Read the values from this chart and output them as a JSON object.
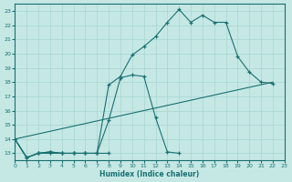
{
  "xlabel": "Humidex (Indice chaleur)",
  "xlim": [
    0,
    23
  ],
  "ylim": [
    12.5,
    23.5
  ],
  "xticks": [
    0,
    1,
    2,
    3,
    4,
    5,
    6,
    7,
    8,
    9,
    10,
    11,
    12,
    13,
    14,
    15,
    16,
    17,
    18,
    19,
    20,
    21,
    22,
    23
  ],
  "yticks": [
    13,
    14,
    15,
    16,
    17,
    18,
    19,
    20,
    21,
    22,
    23
  ],
  "background_color": "#c5e8e5",
  "grid_color": "#a8d5d0",
  "line_color": "#1a7070",
  "line1_x": [
    0,
    1,
    2,
    3,
    4,
    5,
    6,
    7,
    8
  ],
  "line1_y": [
    14.0,
    12.7,
    13.0,
    13.0,
    13.0,
    13.0,
    13.0,
    13.0,
    13.0
  ],
  "line2_x": [
    0,
    1,
    2,
    3,
    4,
    5,
    6,
    7,
    8,
    9,
    10,
    11,
    12,
    13,
    14
  ],
  "line2_y": [
    14.0,
    12.7,
    13.0,
    13.1,
    13.0,
    13.0,
    13.0,
    13.0,
    15.3,
    18.3,
    18.5,
    18.4,
    15.5,
    13.1,
    13.0
  ],
  "line3_x": [
    0,
    1,
    2,
    3,
    4,
    5,
    6,
    7,
    8,
    9,
    10,
    11,
    12,
    13,
    14,
    15,
    16,
    17,
    18,
    19,
    20,
    21,
    22
  ],
  "line3_y": [
    14.0,
    12.7,
    13.0,
    13.1,
    13.0,
    13.0,
    13.0,
    13.0,
    17.8,
    18.4,
    19.9,
    20.5,
    21.2,
    22.2,
    23.1,
    22.2,
    22.7,
    22.2,
    22.2,
    19.8,
    18.7,
    18.0,
    17.9
  ],
  "line4_x": [
    0,
    22
  ],
  "line4_y": [
    14.0,
    18.0
  ]
}
